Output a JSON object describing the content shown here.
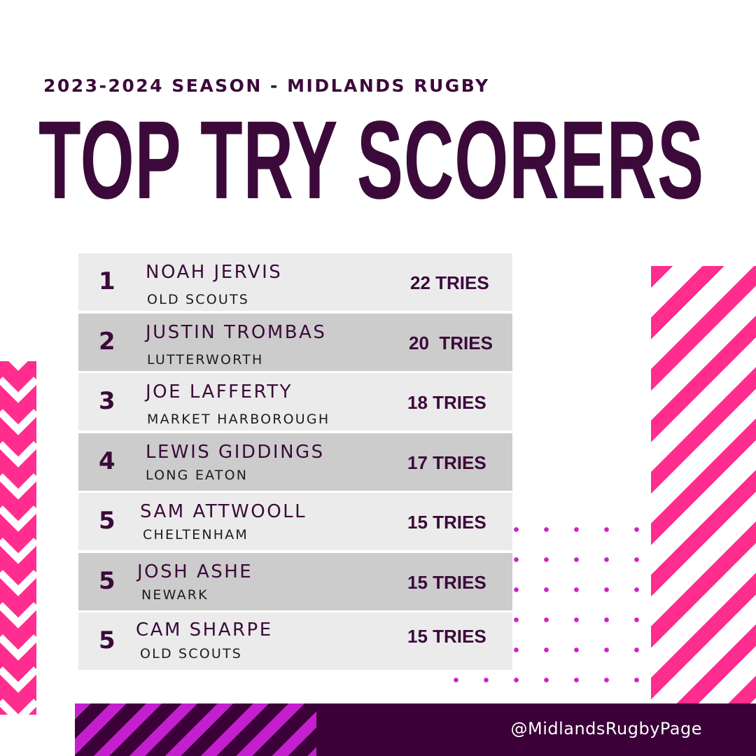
{
  "header": {
    "subtitle": "2023-2024 SEASON - MIDLANDS RUGBY",
    "title": "TOP TRY SCORERS"
  },
  "colors": {
    "primary": "#3b0a3a",
    "accent_pink": "#ff2d8e",
    "accent_magenta": "#c41fcf",
    "row_light": "#ebebeb",
    "row_dark": "#cccccc",
    "footer_bg": "#3b0037"
  },
  "scorers": [
    {
      "rank": "1",
      "name": "NOAH JERVIS",
      "club": "OLD SCOUTS",
      "tries": "22 TRIES"
    },
    {
      "rank": "2",
      "name": "JUSTIN TROMBAS",
      "club": "LUTTERWORTH",
      "tries": "20  TRIES"
    },
    {
      "rank": "3",
      "name": "JOE LAFFERTY",
      "club": "MARKET HARBOROUGH",
      "tries": "18 TRIES"
    },
    {
      "rank": "4",
      "name": "LEWIS GIDDINGS",
      "club": "LONG EATON",
      "tries": "17 TRIES"
    },
    {
      "rank": "5",
      "name": "SAM ATTWOOLL",
      "club": "CHELTENHAM",
      "tries": "15 TRIES"
    },
    {
      "rank": "5",
      "name": "JOSH ASHE",
      "club": "NEWARK",
      "tries": "15 TRIES"
    },
    {
      "rank": "5",
      "name": "CAM SHARPE",
      "club": "OLD SCOUTS",
      "tries": "15 TRIES"
    }
  ],
  "footer": {
    "handle": "@MidlandsRugbyPage"
  }
}
